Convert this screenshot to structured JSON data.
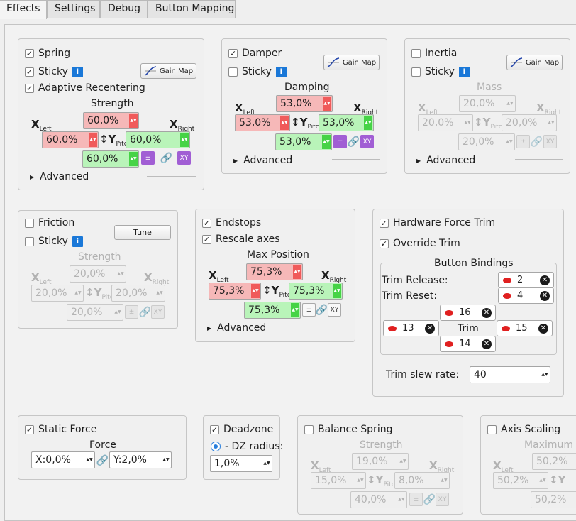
{
  "tabs": [
    "Effects",
    "Settings",
    "Debug",
    "Button Mapping"
  ],
  "spring": {
    "enable": "Spring",
    "sticky": "Sticky",
    "adaptive": "Adaptive Recentering",
    "gain_map": "Gain Map",
    "strength_title": "Strength",
    "top": "60,0%",
    "left": "60,0%",
    "right": "60,0%",
    "bottom": "60,0%",
    "advanced": "Advanced"
  },
  "damper": {
    "enable": "Damper",
    "sticky": "Sticky",
    "gain_map": "Gain Map",
    "title": "Damping",
    "top": "53,0%",
    "left": "53,0%",
    "right": "53,0%",
    "bottom": "53,0%",
    "advanced": "Advanced"
  },
  "inertia": {
    "enable": "Inertia",
    "sticky": "Sticky",
    "gain_map": "Gain Map",
    "title": "Mass",
    "top": "20,0%",
    "left": "20,0%",
    "right": "20,0%",
    "bottom": "20,0%",
    "advanced": "Advanced"
  },
  "friction": {
    "enable": "Friction",
    "sticky": "Sticky",
    "tune": "Tune",
    "title": "Strength",
    "top": "20,0%",
    "left": "20,0%",
    "right": "20,0%",
    "bottom": "20,0%"
  },
  "endstops": {
    "enable": "Endstops",
    "rescale": "Rescale axes",
    "title": "Max Position",
    "top": "75,3%",
    "left": "75,3%",
    "right": "75,3%",
    "bottom": "75,3%",
    "advanced": "Advanced"
  },
  "trim": {
    "hardware": "Hardware Force Trim",
    "override": "Override Trim",
    "bindings_title": "Button Bindings",
    "release_label": "Trim Release:",
    "release_btn": "2",
    "reset_label": "Trim Reset:",
    "reset_btn": "4",
    "up": "16",
    "left": "13",
    "center": "Trim",
    "right": "15",
    "down": "14",
    "slew_label": "Trim slew rate:",
    "slew_value": "40"
  },
  "static_force": {
    "enable": "Static Force",
    "title": "Force",
    "x": "X:0,0%",
    "y": "Y:2,0%"
  },
  "deadzone": {
    "enable": "Deadzone",
    "radius_label": "- DZ radius:",
    "radius": "1,0%"
  },
  "balance": {
    "enable": "Balance Spring",
    "title": "Strength",
    "top": "19,0%",
    "left": "15,0%",
    "right": "8,0%",
    "bottom": "40,0%"
  },
  "axis_scaling": {
    "enable": "Axis Scaling",
    "title": "Maximum tr",
    "top": "50,2%",
    "left": "50,2%",
    "bottom": "50,2%"
  },
  "labels": {
    "x": "X",
    "x_left": "Left",
    "x_right": "Right",
    "y": "Y",
    "y_pitch": "Pitch",
    "pm": "±",
    "xy": "XY",
    "check": "✓",
    "info": "i",
    "close": "✕",
    "link": "🔗"
  }
}
